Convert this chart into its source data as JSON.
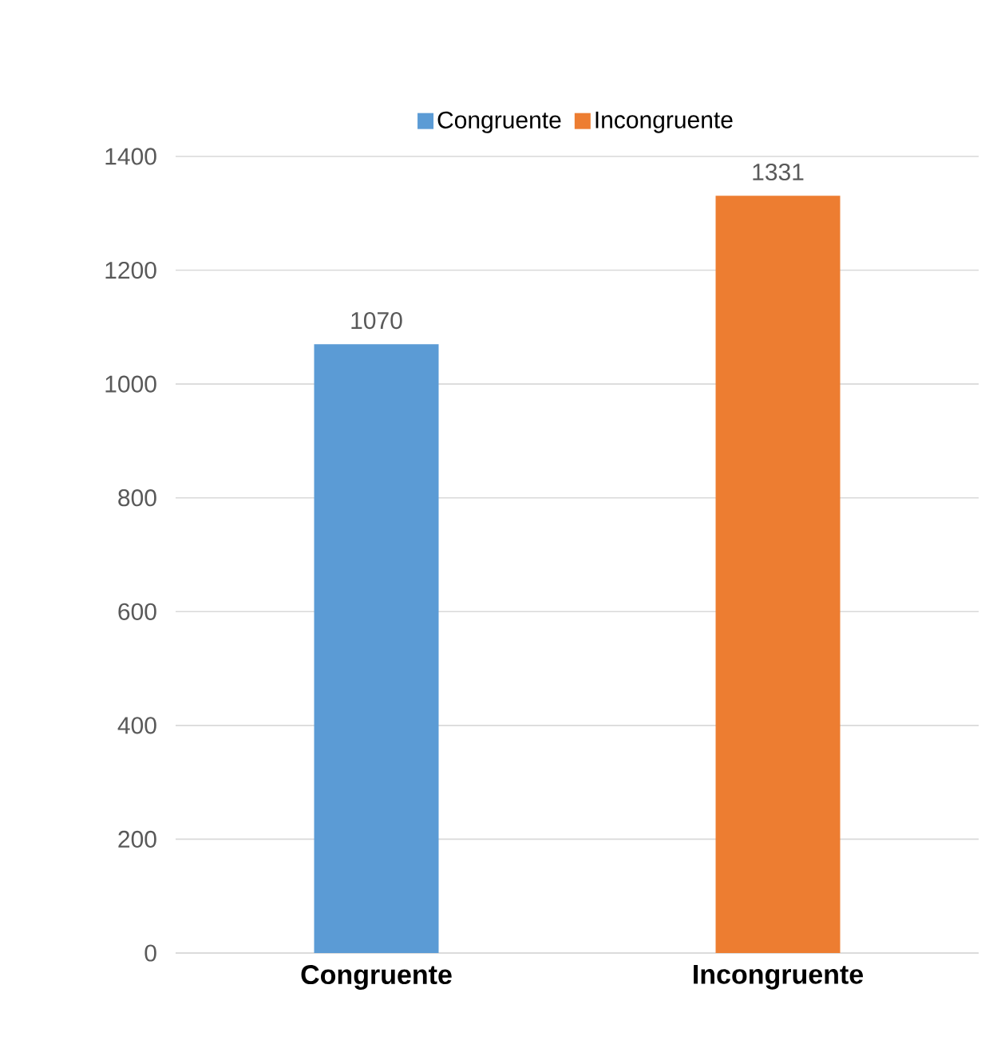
{
  "chart_data": {
    "type": "bar",
    "categories": [
      "Congruente",
      "Incongruente"
    ],
    "series": [
      {
        "name": "Congruente",
        "color": "#5b9bd5",
        "values": [
          1070,
          null
        ]
      },
      {
        "name": "Incongruente",
        "color": "#ed7d31",
        "values": [
          null,
          1331
        ]
      }
    ],
    "ylim": [
      0,
      1400
    ],
    "yticks": [
      0,
      200,
      400,
      600,
      800,
      1000,
      1200,
      1400
    ],
    "grid": "y",
    "legend": "top",
    "data_labels": true
  }
}
